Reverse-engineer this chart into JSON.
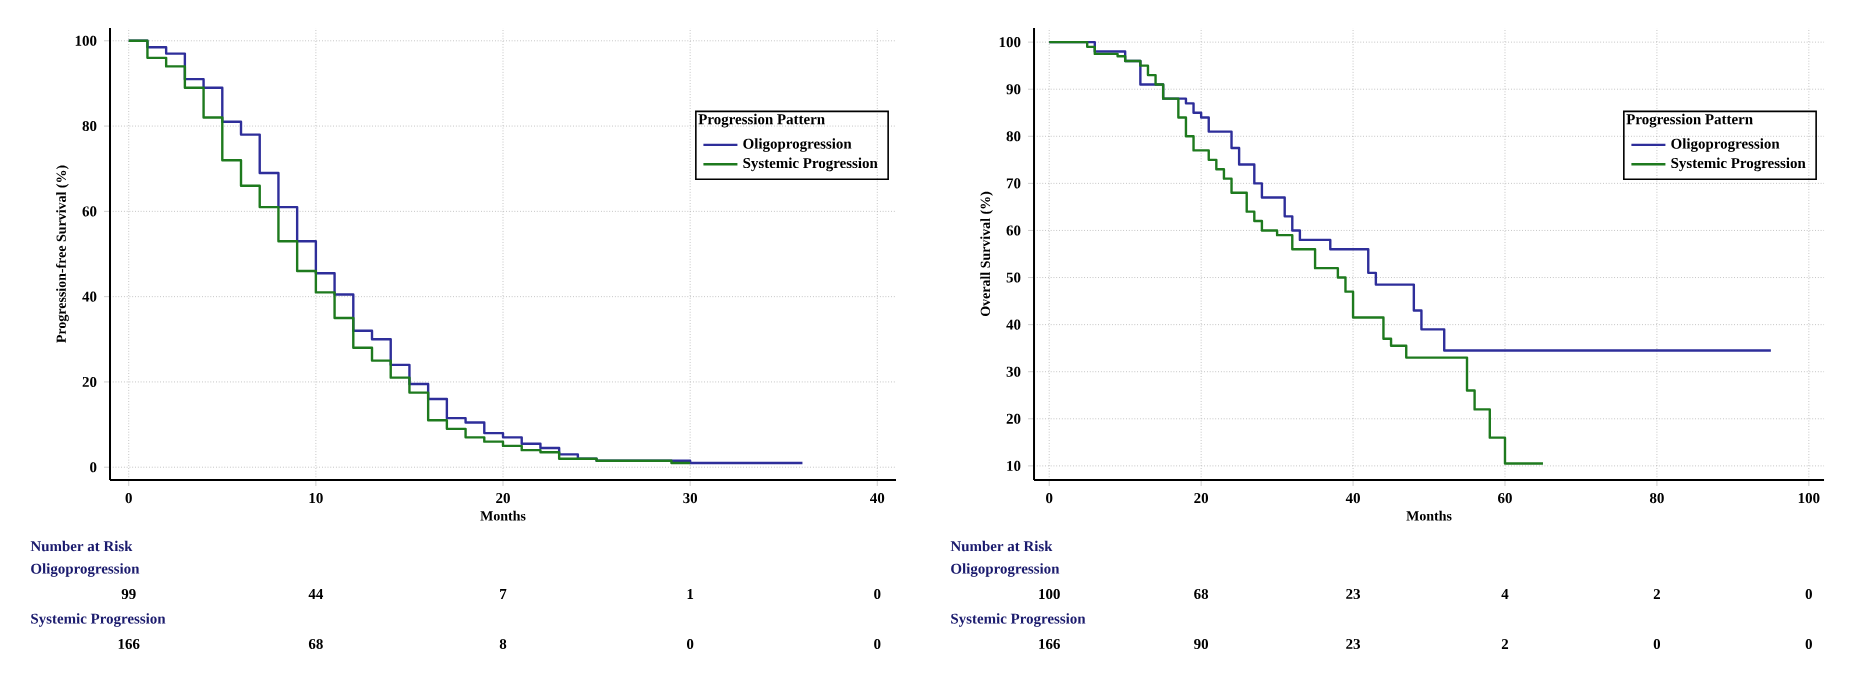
{
  "chart_data": [
    {
      "type": "step",
      "xlabel": "Months",
      "ylabel": "Progression-free Survival (%)",
      "legend_title": "Progression Pattern",
      "legend": "right",
      "grid": true,
      "xlim": [
        -1,
        41
      ],
      "ylim": [
        -3,
        103
      ],
      "xticks": [
        0,
        10,
        20,
        30,
        40
      ],
      "yticks": [
        0,
        20,
        40,
        60,
        80,
        100
      ],
      "series": [
        {
          "name": "Oligoprogression",
          "color": "#2e2e9a",
          "x": [
            0,
            1,
            2,
            3,
            4,
            5,
            6,
            7,
            8,
            9,
            10,
            11,
            12,
            13,
            14,
            15,
            16,
            17,
            18,
            19,
            20,
            21,
            22,
            23,
            24,
            25,
            30,
            36
          ],
          "values": [
            100,
            98.5,
            97,
            91,
            89,
            81,
            78,
            69,
            61,
            53,
            45.5,
            40.5,
            32,
            30,
            24,
            19.5,
            16,
            11.5,
            10.5,
            8,
            7,
            5.5,
            4.5,
            3,
            2,
            1.5,
            1,
            1
          ]
        },
        {
          "name": "Systemic Progression",
          "color": "#1e7a1e",
          "x": [
            0,
            1,
            2,
            3,
            4,
            5,
            6,
            7,
            8,
            9,
            10,
            11,
            12,
            13,
            14,
            15,
            16,
            17,
            18,
            19,
            20,
            21,
            22,
            23,
            25,
            29,
            30
          ],
          "values": [
            100,
            96,
            94,
            89,
            82,
            72,
            66,
            61,
            53,
            46,
            41,
            35,
            28,
            25,
            21,
            17.5,
            11,
            9,
            7,
            6,
            5,
            4,
            3.5,
            2,
            1.5,
            1,
            1
          ]
        }
      ],
      "annotations": [
        "Number at Risk",
        "Oligoprogression",
        "99",
        "44",
        "7",
        "1",
        "0",
        "Systemic Progression",
        "166",
        "68",
        "8",
        "0",
        "0"
      ]
    },
    {
      "type": "step",
      "xlabel": "Months",
      "ylabel": "Overall Survival (%)",
      "legend_title": "Progression Pattern",
      "legend": "right",
      "grid": true,
      "xlim": [
        -2,
        102
      ],
      "ylim": [
        7,
        103
      ],
      "xticks": [
        0,
        20,
        40,
        60,
        80,
        100
      ],
      "yticks": [
        10,
        20,
        30,
        40,
        50,
        60,
        70,
        80,
        90,
        100
      ],
      "series": [
        {
          "name": "Oligoprogression",
          "color": "#2e2e9a",
          "x": [
            0,
            6,
            10,
            12,
            15,
            18,
            19,
            20,
            21,
            24,
            25,
            27,
            28,
            31,
            32,
            33,
            37,
            42,
            43,
            48,
            49,
            52,
            95
          ],
          "values": [
            100,
            98,
            96,
            91,
            88,
            87,
            85,
            84,
            81,
            77.5,
            74,
            70,
            67,
            63,
            60,
            58,
            56,
            51,
            48.5,
            43,
            39,
            34.5,
            34.5
          ]
        },
        {
          "name": "Systemic Progression",
          "color": "#1e7a1e",
          "x": [
            0,
            5,
            6,
            9,
            10,
            12,
            13,
            14,
            15,
            17,
            18,
            19,
            21,
            22,
            23,
            24,
            26,
            27,
            28,
            30,
            32,
            35,
            38,
            39,
            40,
            44,
            45,
            47,
            55,
            56,
            58,
            60,
            65
          ],
          "values": [
            100,
            99,
            97.5,
            97,
            96,
            95,
            93,
            91,
            88,
            84,
            80,
            77,
            75,
            73,
            71,
            68,
            64,
            62,
            60,
            59,
            56,
            52,
            50,
            47,
            41.5,
            37,
            35.5,
            33,
            26,
            22,
            16,
            10.5,
            10.5
          ]
        }
      ],
      "annotations": [
        "Number at Risk",
        "Oligoprogression",
        "100",
        "68",
        "23",
        "4",
        "2",
        "0",
        "Systemic Progression",
        "166",
        "90",
        "23",
        "2",
        "0",
        "0"
      ]
    }
  ]
}
